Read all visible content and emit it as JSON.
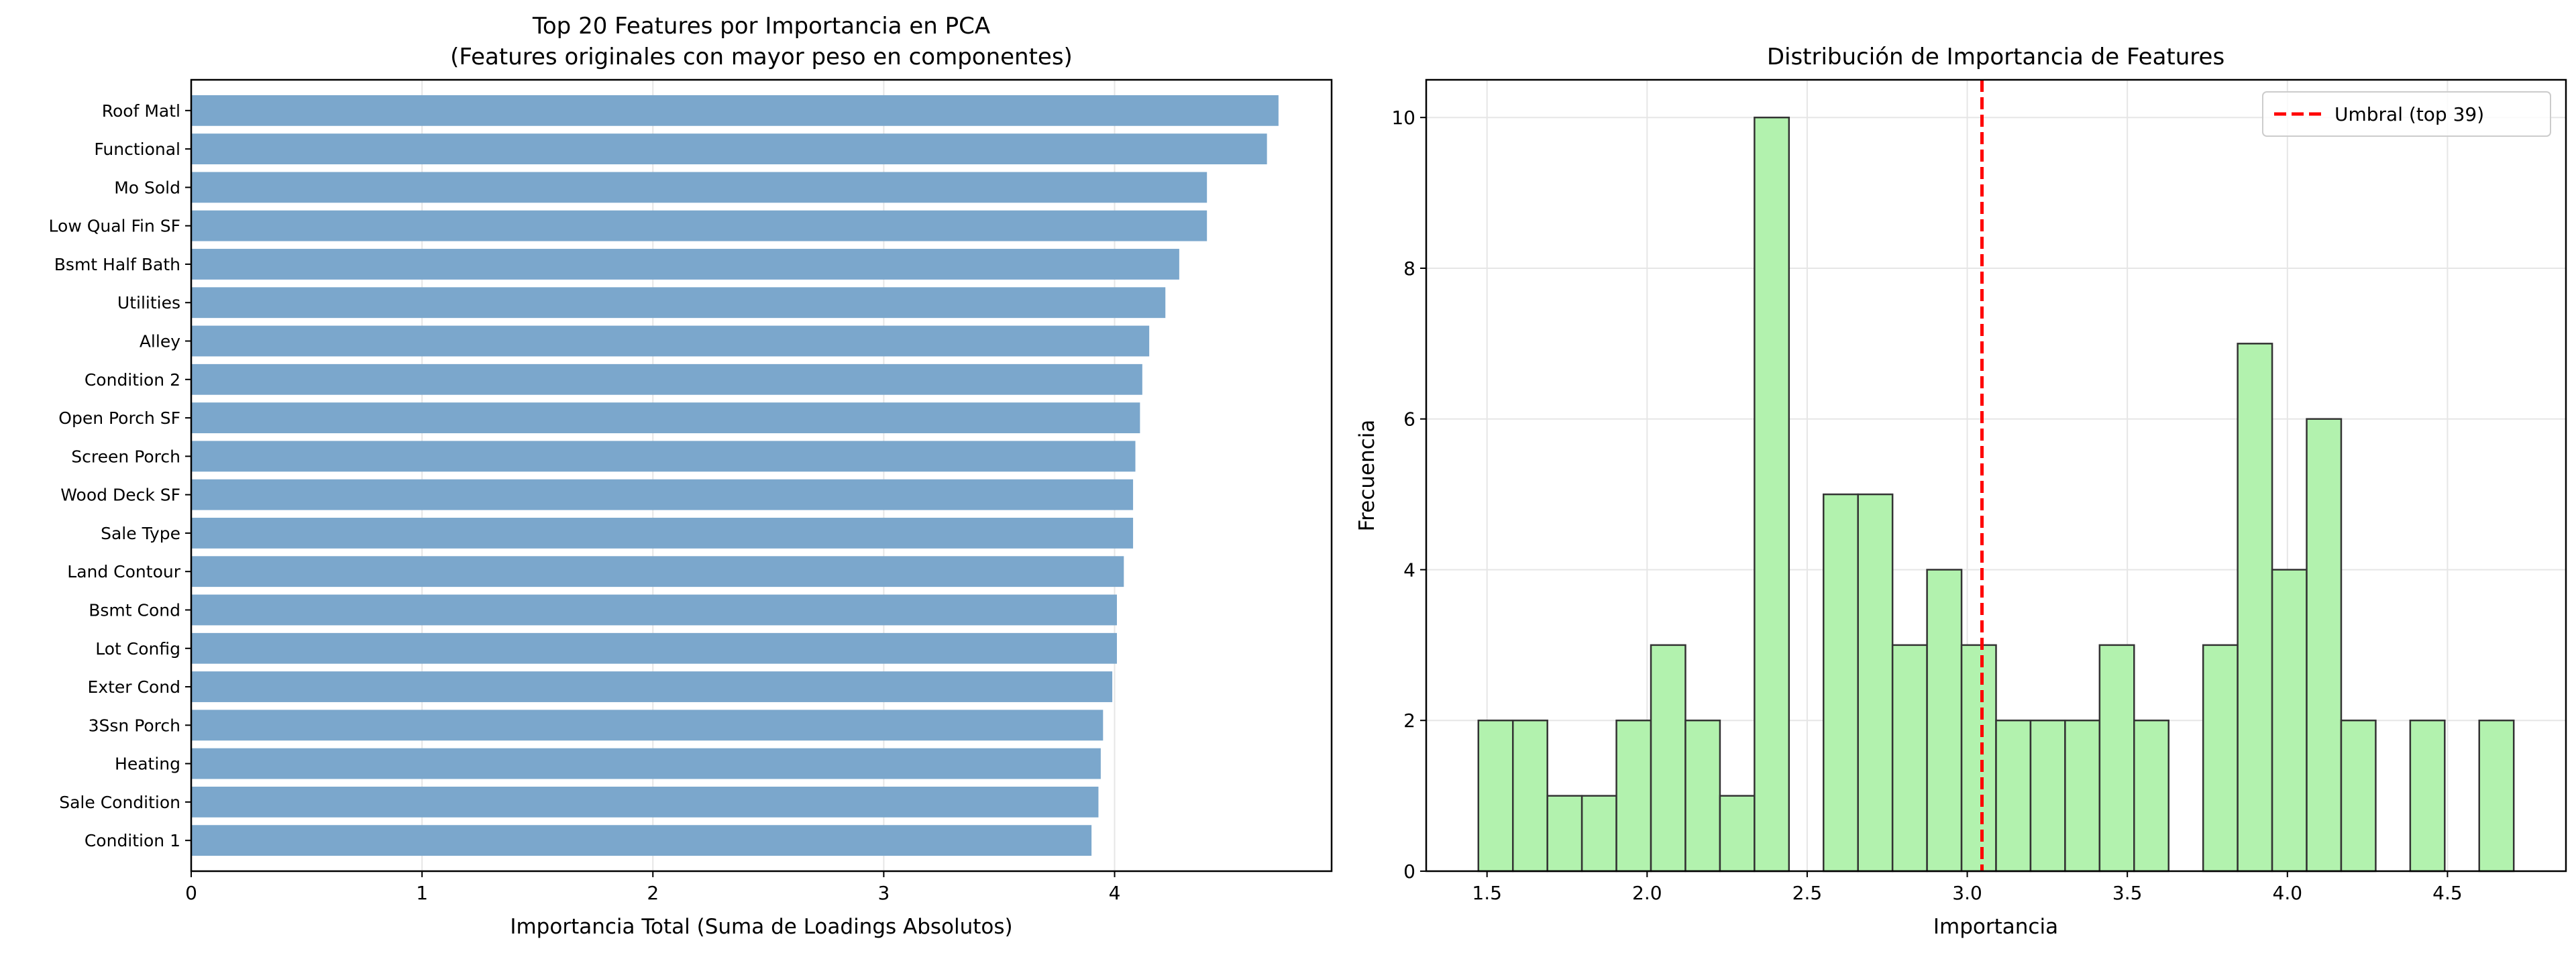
{
  "colors": {
    "bar": "#7ba7cc",
    "hist": "#b2f2ae",
    "hist_edge": "#333333",
    "threshold": "#ff0000",
    "grid": "#e6e6e6"
  },
  "chart_data": [
    {
      "type": "bar",
      "orientation": "horizontal",
      "title": "Top 20 Features por Importancia en PCA",
      "subtitle": "(Features originales con mayor peso en componentes)",
      "xlabel": "Importancia Total (Suma de Loadings Absolutos)",
      "ylabel": "",
      "xlim": [
        0,
        4.94
      ],
      "xticks": [
        0,
        1,
        2,
        3,
        4
      ],
      "grid": true,
      "categories": [
        "Roof Matl",
        "Functional",
        "Mo Sold",
        "Low Qual Fin SF",
        "Bsmt Half Bath",
        "Utilities",
        "Alley",
        "Condition 2",
        "Open Porch SF",
        "Screen Porch",
        "Wood Deck SF",
        "Sale Type",
        "Land Contour",
        "Bsmt Cond",
        "Lot Config",
        "Exter Cond",
        "3Ssn Porch",
        "Heating",
        "Sale Condition",
        "Condition 1"
      ],
      "values": [
        4.71,
        4.66,
        4.4,
        4.4,
        4.28,
        4.22,
        4.15,
        4.12,
        4.11,
        4.09,
        4.08,
        4.08,
        4.04,
        4.01,
        4.01,
        3.99,
        3.95,
        3.94,
        3.93,
        3.9
      ]
    },
    {
      "type": "histogram",
      "title": "Distribución de Importancia de Features",
      "xlabel": "Importancia",
      "ylabel": "Frecuencia",
      "xlim": [
        1.31,
        4.87
      ],
      "ylim": [
        0,
        10.5
      ],
      "xticks": [
        "1.5",
        "2.0",
        "2.5",
        "3.0",
        "3.5",
        "4.0",
        "4.5"
      ],
      "yticks": [
        0,
        2,
        4,
        6,
        8,
        10
      ],
      "grid": true,
      "bin_range": [
        1.473,
        4.707
      ],
      "bins": 30,
      "counts": [
        2,
        2,
        1,
        1,
        2,
        3,
        2,
        1,
        10,
        0,
        5,
        5,
        3,
        4,
        3,
        2,
        2,
        2,
        3,
        2,
        0,
        3,
        7,
        4,
        6,
        2,
        0,
        2,
        0,
        2
      ],
      "threshold": 3.046,
      "legend": {
        "position": "top-right",
        "entries": [
          "Umbral (top 39)"
        ]
      }
    }
  ]
}
